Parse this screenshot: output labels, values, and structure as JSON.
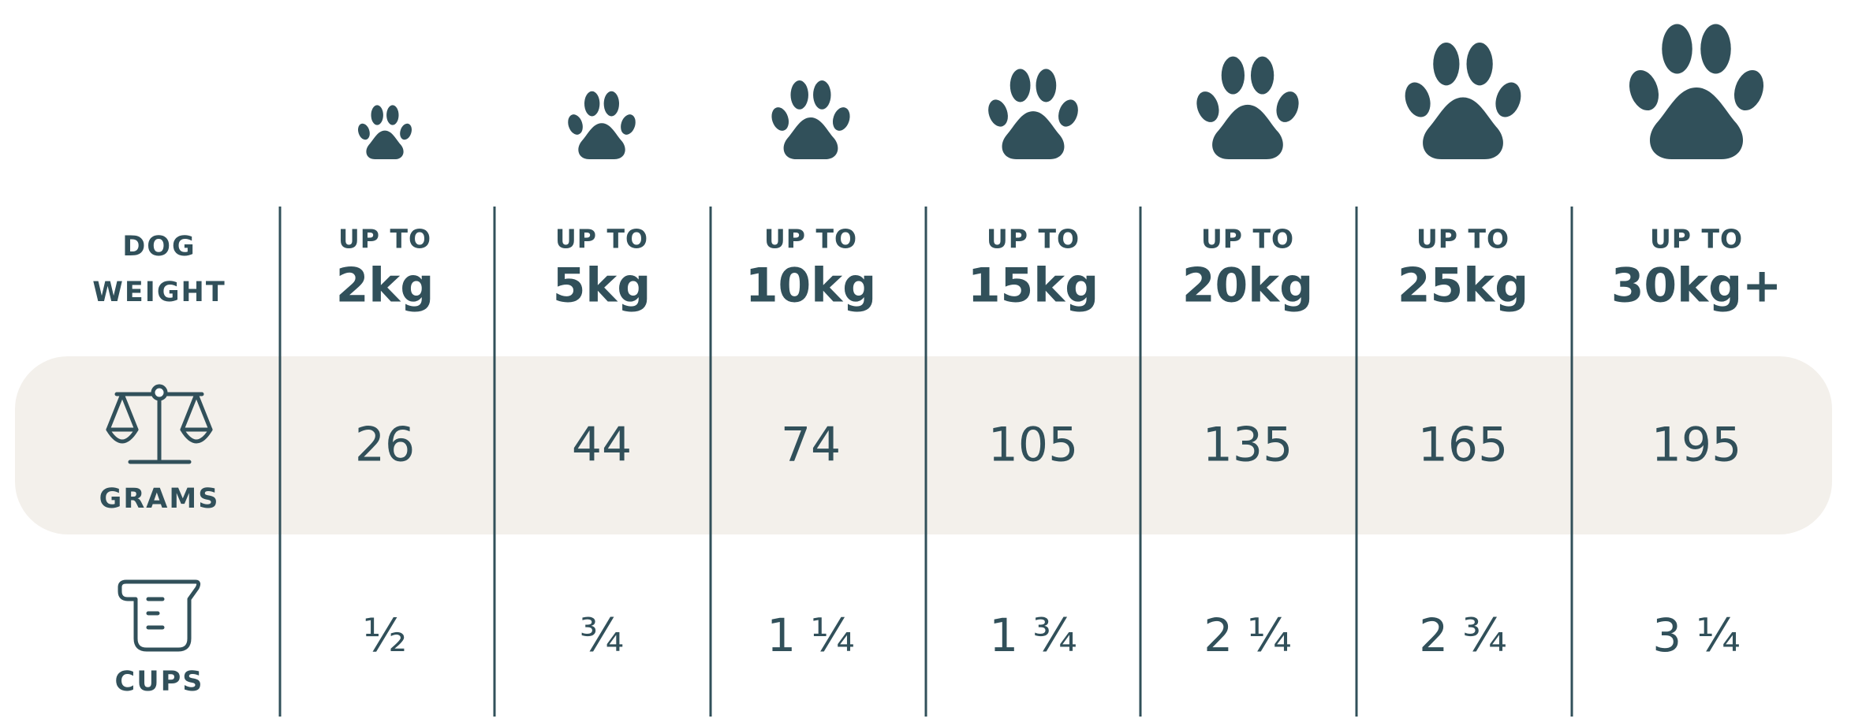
{
  "row_labels": {
    "weight": [
      "DOG",
      "WEIGHT"
    ],
    "grams": "GRAMS",
    "cups": "CUPS"
  },
  "columns": [
    {
      "prefix": "UP TO",
      "weight": "2kg",
      "grams": 26,
      "cups": "½"
    },
    {
      "prefix": "UP TO",
      "weight": "5kg",
      "grams": 44,
      "cups": "¾"
    },
    {
      "prefix": "UP TO",
      "weight": "10kg",
      "grams": 74,
      "cups": "1 ¼"
    },
    {
      "prefix": "UP TO",
      "weight": "15kg",
      "grams": 105,
      "cups": "1 ¾"
    },
    {
      "prefix": "UP TO",
      "weight": "20kg",
      "grams": 135,
      "cups": "2 ¼"
    },
    {
      "prefix": "UP TO",
      "weight": "25kg",
      "grams": 165,
      "cups": "2 ¾"
    },
    {
      "prefix": "UP TO",
      "weight": "30kg+",
      "grams": 195,
      "cups": "3 ¼"
    }
  ]
}
